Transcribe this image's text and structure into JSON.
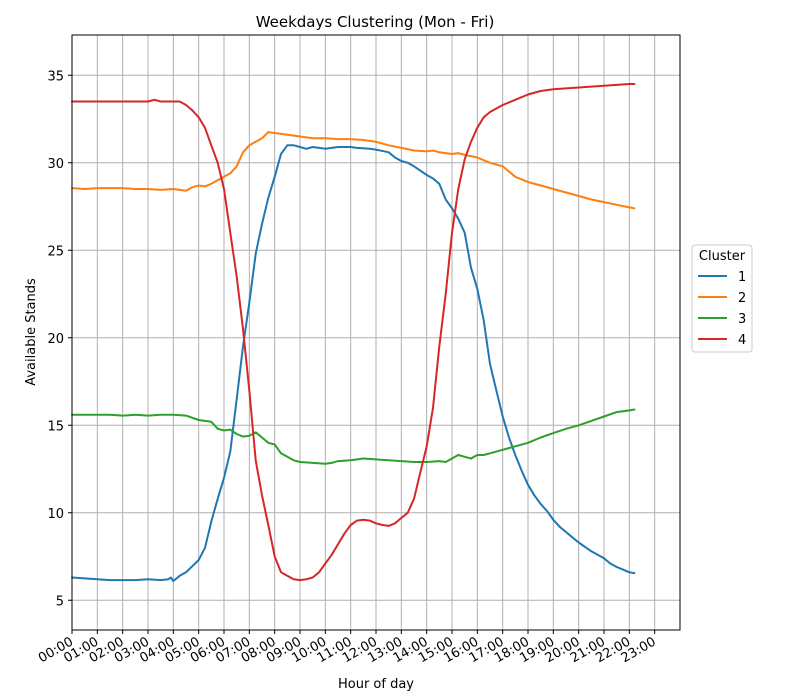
{
  "chart_data": {
    "type": "line",
    "title": "Weekdays Clustering (Mon - Fri)",
    "xlabel": "Hour of day",
    "ylabel": "Available Stands",
    "xlim": [
      0,
      24
    ],
    "ylim": [
      3.3,
      37.3
    ],
    "grid": true,
    "x_ticks": [
      "00:00",
      "01:00",
      "02:00",
      "03:00",
      "04:00",
      "05:00",
      "06:00",
      "07:00",
      "08:00",
      "09:00",
      "10:00",
      "11:00",
      "12:00",
      "13:00",
      "14:00",
      "15:00",
      "16:00",
      "17:00",
      "18:00",
      "19:00",
      "20:00",
      "21:00",
      "22:00",
      "23:00"
    ],
    "y_ticks": [
      5,
      10,
      15,
      20,
      25,
      30,
      35
    ],
    "legend": {
      "title": "Cluster",
      "placement": "outside-right"
    },
    "series": [
      {
        "name": "1",
        "color": "#1f77b4",
        "points": [
          [
            0,
            6.3
          ],
          [
            0.5,
            6.25
          ],
          [
            1,
            6.2
          ],
          [
            1.5,
            6.15
          ],
          [
            2,
            6.15
          ],
          [
            2.5,
            6.15
          ],
          [
            3,
            6.2
          ],
          [
            3.5,
            6.15
          ],
          [
            3.8,
            6.2
          ],
          [
            3.9,
            6.3
          ],
          [
            4,
            6.1
          ],
          [
            4.25,
            6.4
          ],
          [
            4.5,
            6.6
          ],
          [
            5,
            7.3
          ],
          [
            5.25,
            8
          ],
          [
            5.5,
            9.5
          ],
          [
            5.75,
            10.8
          ],
          [
            6,
            12
          ],
          [
            6.25,
            13.5
          ],
          [
            6.5,
            16.5
          ],
          [
            6.75,
            19.5
          ],
          [
            7,
            22
          ],
          [
            7.25,
            24.8
          ],
          [
            7.5,
            26.5
          ],
          [
            7.75,
            28
          ],
          [
            8,
            29.2
          ],
          [
            8.25,
            30.5
          ],
          [
            8.5,
            31
          ],
          [
            8.75,
            31
          ],
          [
            9,
            30.9
          ],
          [
            9.25,
            30.8
          ],
          [
            9.5,
            30.9
          ],
          [
            10,
            30.8
          ],
          [
            10.5,
            30.9
          ],
          [
            11,
            30.9
          ],
          [
            11.25,
            30.85
          ],
          [
            11.75,
            30.8
          ],
          [
            12,
            30.75
          ],
          [
            12.5,
            30.6
          ],
          [
            12.75,
            30.3
          ],
          [
            13,
            30.1
          ],
          [
            13.25,
            30
          ],
          [
            13.5,
            29.8
          ],
          [
            14,
            29.3
          ],
          [
            14.25,
            29.1
          ],
          [
            14.5,
            28.8
          ],
          [
            14.75,
            27.9
          ],
          [
            15,
            27.4
          ],
          [
            15.25,
            26.8
          ],
          [
            15.5,
            26
          ],
          [
            15.75,
            24
          ],
          [
            16,
            22.8
          ],
          [
            16.25,
            21
          ],
          [
            16.5,
            18.5
          ],
          [
            16.75,
            17
          ],
          [
            17,
            15.5
          ],
          [
            17.25,
            14.3
          ],
          [
            17.5,
            13.3
          ],
          [
            17.75,
            12.4
          ],
          [
            18,
            11.6
          ],
          [
            18.25,
            11
          ],
          [
            18.5,
            10.5
          ],
          [
            18.75,
            10.1
          ],
          [
            19,
            9.6
          ],
          [
            19.25,
            9.2
          ],
          [
            19.5,
            8.9
          ],
          [
            19.75,
            8.6
          ],
          [
            20,
            8.3
          ],
          [
            20.5,
            7.8
          ],
          [
            21,
            7.4
          ],
          [
            21.25,
            7.1
          ],
          [
            21.5,
            6.9
          ],
          [
            21.75,
            6.75
          ],
          [
            22,
            6.6
          ],
          [
            22.2,
            6.55
          ]
        ]
      },
      {
        "name": "2",
        "color": "#ff7f0e",
        "points": [
          [
            0,
            28.55
          ],
          [
            0.5,
            28.5
          ],
          [
            1,
            28.55
          ],
          [
            1.5,
            28.55
          ],
          [
            2,
            28.55
          ],
          [
            2.5,
            28.5
          ],
          [
            3,
            28.5
          ],
          [
            3.5,
            28.45
          ],
          [
            4,
            28.5
          ],
          [
            4.25,
            28.45
          ],
          [
            4.5,
            28.4
          ],
          [
            4.75,
            28.6
          ],
          [
            5,
            28.7
          ],
          [
            5.25,
            28.65
          ],
          [
            5.5,
            28.8
          ],
          [
            5.75,
            29
          ],
          [
            6,
            29.2
          ],
          [
            6.25,
            29.4
          ],
          [
            6.5,
            29.8
          ],
          [
            6.75,
            30.6
          ],
          [
            7,
            31
          ],
          [
            7.25,
            31.2
          ],
          [
            7.5,
            31.4
          ],
          [
            7.75,
            31.75
          ],
          [
            8,
            31.7
          ],
          [
            8.25,
            31.65
          ],
          [
            8.5,
            31.6
          ],
          [
            9,
            31.5
          ],
          [
            9.5,
            31.4
          ],
          [
            10,
            31.4
          ],
          [
            10.5,
            31.35
          ],
          [
            11,
            31.35
          ],
          [
            11.5,
            31.3
          ],
          [
            12,
            31.2
          ],
          [
            12.5,
            31
          ],
          [
            13,
            30.85
          ],
          [
            13.5,
            30.7
          ],
          [
            14,
            30.65
          ],
          [
            14.25,
            30.7
          ],
          [
            14.5,
            30.6
          ],
          [
            15,
            30.5
          ],
          [
            15.25,
            30.55
          ],
          [
            15.5,
            30.45
          ],
          [
            16,
            30.3
          ],
          [
            16.5,
            30
          ],
          [
            17,
            29.8
          ],
          [
            17.25,
            29.5
          ],
          [
            17.5,
            29.2
          ],
          [
            18,
            28.9
          ],
          [
            18.5,
            28.7
          ],
          [
            19,
            28.5
          ],
          [
            19.5,
            28.3
          ],
          [
            20,
            28.1
          ],
          [
            20.5,
            27.9
          ],
          [
            21,
            27.75
          ],
          [
            21.5,
            27.6
          ],
          [
            22,
            27.45
          ],
          [
            22.2,
            27.4
          ]
        ]
      },
      {
        "name": "3",
        "color": "#2ca02c",
        "points": [
          [
            0,
            15.6
          ],
          [
            0.5,
            15.6
          ],
          [
            1,
            15.6
          ],
          [
            1.5,
            15.6
          ],
          [
            2,
            15.55
          ],
          [
            2.5,
            15.6
          ],
          [
            3,
            15.55
          ],
          [
            3.5,
            15.6
          ],
          [
            4,
            15.6
          ],
          [
            4.5,
            15.55
          ],
          [
            5,
            15.3
          ],
          [
            5.25,
            15.25
          ],
          [
            5.5,
            15.2
          ],
          [
            5.75,
            14.8
          ],
          [
            6,
            14.7
          ],
          [
            6.25,
            14.75
          ],
          [
            6.5,
            14.5
          ],
          [
            6.75,
            14.35
          ],
          [
            7,
            14.4
          ],
          [
            7.25,
            14.6
          ],
          [
            7.5,
            14.3
          ],
          [
            7.75,
            14
          ],
          [
            8,
            13.9
          ],
          [
            8.25,
            13.4
          ],
          [
            8.5,
            13.2
          ],
          [
            8.75,
            13
          ],
          [
            9,
            12.9
          ],
          [
            9.5,
            12.85
          ],
          [
            10,
            12.8
          ],
          [
            10.25,
            12.85
          ],
          [
            10.5,
            12.95
          ],
          [
            11,
            13
          ],
          [
            11.5,
            13.1
          ],
          [
            12,
            13.05
          ],
          [
            12.5,
            13
          ],
          [
            13,
            12.95
          ],
          [
            13.5,
            12.9
          ],
          [
            14,
            12.9
          ],
          [
            14.5,
            12.95
          ],
          [
            14.75,
            12.9
          ],
          [
            15,
            13.1
          ],
          [
            15.25,
            13.3
          ],
          [
            15.5,
            13.2
          ],
          [
            15.75,
            13.1
          ],
          [
            16,
            13.3
          ],
          [
            16.25,
            13.3
          ],
          [
            16.5,
            13.4
          ],
          [
            17,
            13.6
          ],
          [
            17.5,
            13.8
          ],
          [
            18,
            14
          ],
          [
            18.5,
            14.3
          ],
          [
            19,
            14.55
          ],
          [
            19.5,
            14.8
          ],
          [
            20,
            15
          ],
          [
            20.5,
            15.25
          ],
          [
            21,
            15.5
          ],
          [
            21.5,
            15.75
          ],
          [
            22,
            15.85
          ],
          [
            22.2,
            15.9
          ]
        ]
      },
      {
        "name": "4",
        "color": "#d62728",
        "points": [
          [
            0,
            33.5
          ],
          [
            0.5,
            33.5
          ],
          [
            1,
            33.5
          ],
          [
            1.5,
            33.5
          ],
          [
            2,
            33.5
          ],
          [
            2.5,
            33.5
          ],
          [
            3,
            33.5
          ],
          [
            3.25,
            33.6
          ],
          [
            3.5,
            33.5
          ],
          [
            4,
            33.5
          ],
          [
            4.25,
            33.5
          ],
          [
            4.5,
            33.3
          ],
          [
            4.75,
            33
          ],
          [
            5,
            32.6
          ],
          [
            5.25,
            32
          ],
          [
            5.5,
            31
          ],
          [
            5.75,
            30
          ],
          [
            6,
            28.5
          ],
          [
            6.25,
            26
          ],
          [
            6.5,
            23.5
          ],
          [
            6.75,
            20.5
          ],
          [
            7,
            17
          ],
          [
            7.25,
            13
          ],
          [
            7.5,
            11
          ],
          [
            7.75,
            9.3
          ],
          [
            8,
            7.5
          ],
          [
            8.25,
            6.6
          ],
          [
            8.5,
            6.4
          ],
          [
            8.75,
            6.2
          ],
          [
            9,
            6.15
          ],
          [
            9.25,
            6.2
          ],
          [
            9.5,
            6.3
          ],
          [
            9.75,
            6.6
          ],
          [
            10,
            7.1
          ],
          [
            10.25,
            7.6
          ],
          [
            10.5,
            8.2
          ],
          [
            10.75,
            8.8
          ],
          [
            11,
            9.3
          ],
          [
            11.25,
            9.55
          ],
          [
            11.5,
            9.6
          ],
          [
            11.75,
            9.55
          ],
          [
            12,
            9.4
          ],
          [
            12.25,
            9.3
          ],
          [
            12.5,
            9.25
          ],
          [
            12.75,
            9.4
          ],
          [
            13,
            9.7
          ],
          [
            13.25,
            10
          ],
          [
            13.5,
            10.8
          ],
          [
            13.75,
            12.3
          ],
          [
            14,
            13.8
          ],
          [
            14.25,
            16
          ],
          [
            14.5,
            19.5
          ],
          [
            14.75,
            22.5
          ],
          [
            15,
            26
          ],
          [
            15.25,
            28.5
          ],
          [
            15.5,
            30.2
          ],
          [
            15.75,
            31.2
          ],
          [
            16,
            32
          ],
          [
            16.25,
            32.6
          ],
          [
            16.5,
            32.9
          ],
          [
            17,
            33.3
          ],
          [
            17.5,
            33.6
          ],
          [
            18,
            33.9
          ],
          [
            18.5,
            34.1
          ],
          [
            19,
            34.2
          ],
          [
            19.5,
            34.25
          ],
          [
            20,
            34.3
          ],
          [
            20.5,
            34.35
          ],
          [
            21,
            34.4
          ],
          [
            21.5,
            34.45
          ],
          [
            22,
            34.5
          ],
          [
            22.2,
            34.5
          ]
        ]
      }
    ]
  }
}
